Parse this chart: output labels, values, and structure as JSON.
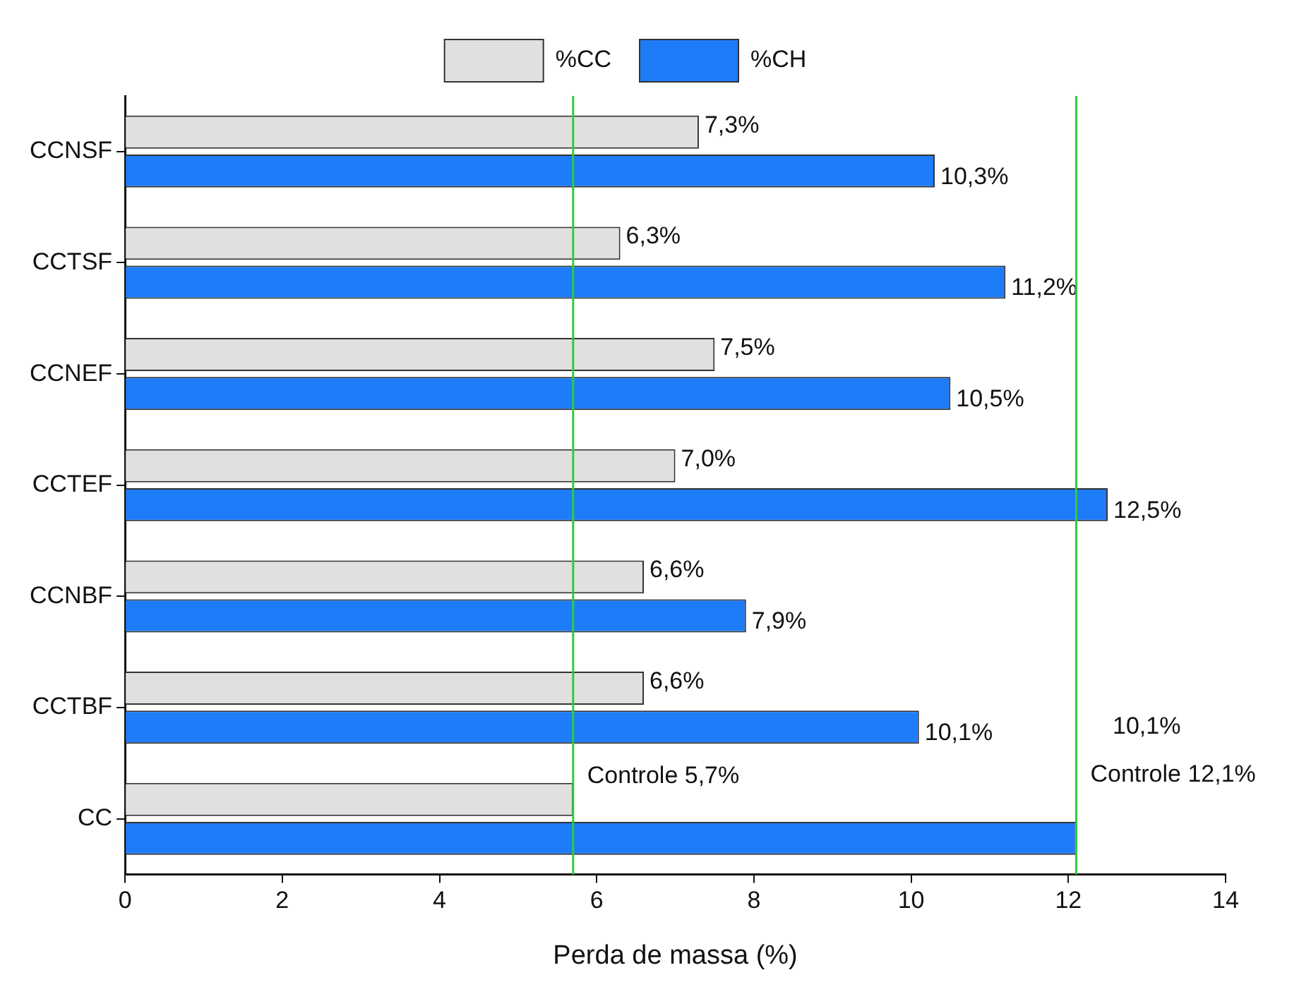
{
  "chart_data": {
    "type": "bar",
    "orientation": "horizontal",
    "xlabel": "Perda de massa (%)",
    "categories": [
      "CCNSF",
      "CCTSF",
      "CCNEF",
      "CCTEF",
      "CCNBF",
      "CCTBF",
      "CC"
    ],
    "series": [
      {
        "name": "%CC",
        "color": "#e0e0e0",
        "values": [
          7.3,
          6.3,
          7.5,
          7.0,
          6.6,
          6.6,
          5.7
        ],
        "value_labels": [
          "7,3%",
          "6,3%",
          "7,5%",
          "7,0%",
          "6,6%",
          "6,6%",
          null
        ]
      },
      {
        "name": "%CH",
        "color": "#1e7cf8",
        "values": [
          10.3,
          11.2,
          10.5,
          12.5,
          7.9,
          10.1,
          12.1
        ],
        "value_labels": [
          "10,3%",
          "11,2%",
          "10,5%",
          "12,5%",
          "7,9%",
          "10,1%",
          null
        ]
      }
    ],
    "xlim": [
      0,
      14
    ],
    "xticks": [
      0,
      2,
      4,
      6,
      8,
      10,
      12,
      14
    ],
    "grid": false,
    "legend": "top",
    "ref_lines": [
      {
        "axis": "x",
        "value": 5.7,
        "label": "Controle 5,7%",
        "color": "#2ecc40"
      },
      {
        "axis": "x",
        "value": 12.1,
        "label": "Controle 12,1%",
        "color": "#2ecc40"
      }
    ],
    "annotations": [
      "10,1%"
    ]
  }
}
